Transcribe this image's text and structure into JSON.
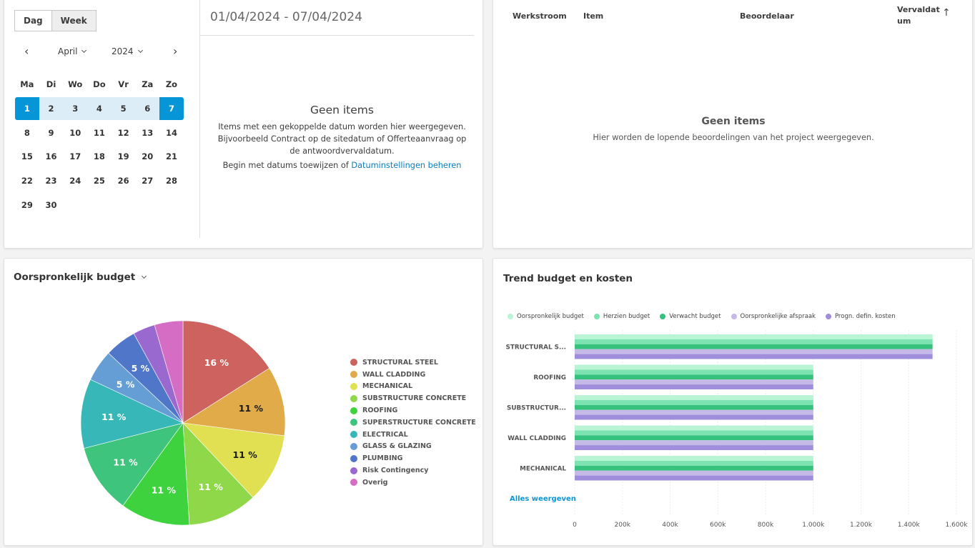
{
  "calendar": {
    "view_toggle": [
      {
        "label": "Dag",
        "active": false
      },
      {
        "label": "Week",
        "active": true
      }
    ],
    "month": "April",
    "year": "2024",
    "weekdays": [
      "Ma",
      "Di",
      "Wo",
      "Do",
      "Vr",
      "Za",
      "Zo"
    ],
    "weeks": [
      [
        "1",
        "2",
        "3",
        "4",
        "5",
        "6",
        "7"
      ],
      [
        "8",
        "9",
        "10",
        "11",
        "12",
        "13",
        "14"
      ],
      [
        "15",
        "16",
        "17",
        "18",
        "19",
        "20",
        "21"
      ],
      [
        "22",
        "23",
        "24",
        "25",
        "26",
        "27",
        "28"
      ],
      [
        "29",
        "30",
        "",
        "",
        "",
        "",
        ""
      ]
    ],
    "selected_week_index": 0,
    "range_title": "01/04/2024 - 07/04/2024",
    "empty": {
      "title": "Geen items",
      "text": "Items met een gekoppelde datum worden hier weergegeven. Bijvoorbeeld Contract op de sitedatum of Offerteaanvraag op de antwoordvervaldatum.",
      "cta_prefix": "Begin met datums toewijzen of ",
      "cta_link": "Datuminstellingen beheren"
    }
  },
  "reviews": {
    "columns": [
      "Werkstroom",
      "Item",
      "Beoordelaar",
      "Vervaldat",
      "um"
    ],
    "sort_icon": "arrow-up-icon",
    "empty": {
      "title": "Geen items",
      "text": "Hier worden de lopende beoordelingen van het project weergegeven."
    }
  },
  "budget": {
    "title": "Oorspronkelijk budget"
  },
  "trend": {
    "title": "Trend budget en kosten",
    "show_all": "Alles weergeven"
  },
  "chart_data": [
    {
      "type": "pie",
      "title": "Oorspronkelijk budget",
      "legend_position": "right",
      "slices": [
        {
          "label": "STRUCTURAL STEEL",
          "value": 16,
          "display": "16 %",
          "color": "#cd625f",
          "label_color": "#ffffff"
        },
        {
          "label": "WALL CLADDING",
          "value": 11,
          "display": "11 %",
          "color": "#e1ab4a",
          "label_color": "#1a1a1a"
        },
        {
          "label": "MECHANICAL",
          "value": 11,
          "display": "11 %",
          "color": "#e0e052",
          "label_color": "#1a1a1a"
        },
        {
          "label": "SUBSTRUCTURE CONCRETE",
          "value": 11,
          "display": "11 %",
          "color": "#8ed84a",
          "label_color": "#ffffff"
        },
        {
          "label": "ROOFING",
          "value": 11,
          "display": "11 %",
          "color": "#3ed33e",
          "label_color": "#ffffff"
        },
        {
          "label": "SUPERSTRUCTURE CONCRETE",
          "value": 11,
          "display": "11 %",
          "color": "#3ec47c",
          "label_color": "#ffffff"
        },
        {
          "label": "ELECTRICAL",
          "value": 11,
          "display": "11 %",
          "color": "#37b7b7",
          "label_color": "#ffffff"
        },
        {
          "label": "GLASS & GLAZING",
          "value": 5,
          "display": "5 %",
          "color": "#659dd5",
          "label_color": "#ffffff"
        },
        {
          "label": "PLUMBING",
          "value": 5,
          "display": "5 %",
          "color": "#4f76c8",
          "label_color": "#ffffff"
        },
        {
          "label": "Risk Contingency",
          "value": 3.5,
          "display": "",
          "color": "#9a69cf",
          "label_color": "#ffffff"
        },
        {
          "label": "Overig",
          "value": 4.5,
          "display": "",
          "color": "#d56dc4",
          "label_color": "#ffffff"
        }
      ]
    },
    {
      "type": "bar",
      "orientation": "horizontal",
      "title": "Trend budget en kosten",
      "legend_position": "top",
      "categories": [
        "STRUCTURAL S...",
        "ROOFING",
        "SUBSTRUCTUR...",
        "WALL CLADDING",
        "MECHANICAL"
      ],
      "series": [
        {
          "name": "Oorspronkelijk budget",
          "color": "#b9f5d4",
          "values": [
            1500,
            1000,
            1000,
            1000,
            1000
          ]
        },
        {
          "name": "Herzien budget",
          "color": "#7de3b0",
          "values": [
            1500,
            1000,
            1000,
            1000,
            1000
          ]
        },
        {
          "name": "Verwacht budget",
          "color": "#36c17c",
          "values": [
            1500,
            1000,
            1000,
            1000,
            1000
          ]
        },
        {
          "name": "Oorspronkelijke afspraak",
          "color": "#c5b9e8",
          "values": [
            1500,
            1000,
            1000,
            1000,
            1000
          ]
        },
        {
          "name": "Progn. defin. kosten",
          "color": "#a08ddc",
          "values": [
            1500,
            1000,
            1000,
            1000,
            1000
          ]
        }
      ],
      "xlim": [
        0,
        1600
      ],
      "x_unit": "k",
      "x_ticks": [
        0,
        200,
        400,
        600,
        800,
        1000,
        1200,
        1400,
        1600
      ],
      "x_tick_labels": [
        "0",
        "200k",
        "400k",
        "600k",
        "800k",
        "1.000k",
        "1.200k",
        "1.400k",
        "1.600k"
      ],
      "grid": true
    }
  ]
}
